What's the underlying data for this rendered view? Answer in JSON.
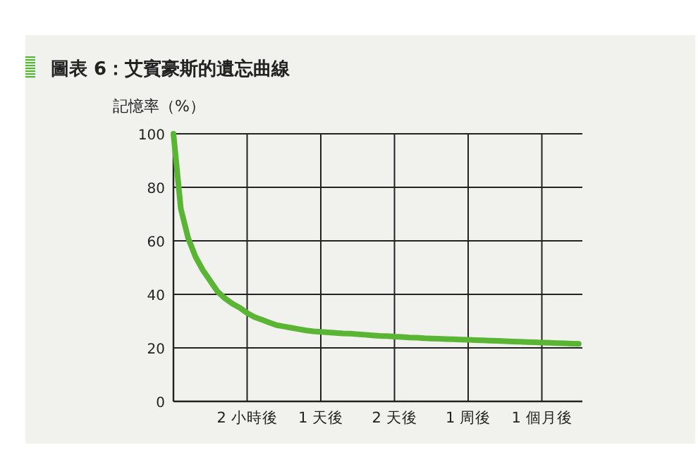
{
  "chart_data": {
    "type": "line",
    "title": "圖表 6：艾賓豪斯的遺忘曲線",
    "ylabel": "記憶率（%）",
    "categories": [
      null,
      null,
      null,
      null,
      null,
      null,
      null,
      null,
      null,
      null,
      "2 小時後",
      null,
      null,
      null,
      null,
      null,
      null,
      null,
      null,
      null,
      "1 天後",
      null,
      null,
      null,
      null,
      null,
      null,
      null,
      null,
      null,
      "2 天後",
      null,
      null,
      null,
      null,
      null,
      null,
      null,
      null,
      null,
      "1 周後",
      null,
      null,
      null,
      null,
      null,
      null,
      null,
      null,
      null,
      "1 個月後",
      null,
      null,
      null,
      null,
      null
    ],
    "series": [
      {
        "color": "#5ab535",
        "values": [
          100,
          72,
          61,
          54,
          49,
          45,
          41,
          38.5,
          36.5,
          35,
          33,
          31.5,
          30.5,
          29.5,
          28.5,
          28,
          27.5,
          27,
          26.5,
          26.2,
          26,
          25.8,
          25.6,
          25.4,
          25.3,
          25.1,
          24.9,
          24.7,
          24.5,
          24.4,
          24.2,
          24.1,
          23.9,
          23.8,
          23.6,
          23.5,
          23.4,
          23.3,
          23.2,
          23.1,
          23,
          22.9,
          22.8,
          22.7,
          22.6,
          22.5,
          22.4,
          22.3,
          22.2,
          22.1,
          22,
          21.9,
          21.8,
          21.7,
          21.6,
          21.5
        ]
      }
    ],
    "ylim": [
      0,
      100
    ],
    "yticks": [
      0,
      20,
      40,
      60,
      80,
      100
    ],
    "grid": true,
    "marker": "none",
    "line_style": "solid"
  }
}
